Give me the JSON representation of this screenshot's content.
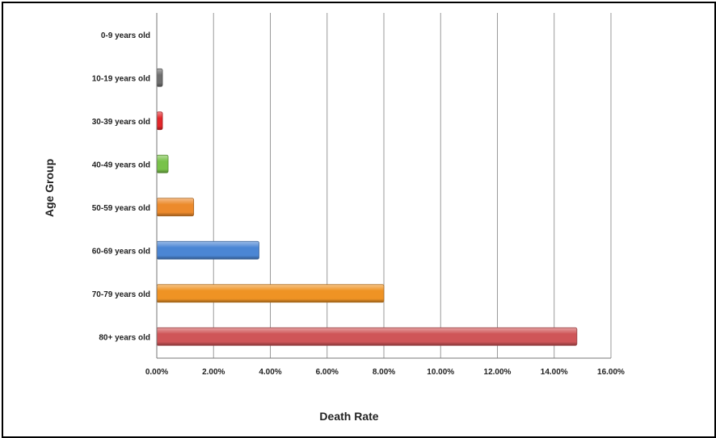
{
  "chart_data": {
    "type": "bar",
    "orientation": "horizontal",
    "title": "",
    "xlabel": "Death Rate",
    "ylabel": "Age Group",
    "categories": [
      "0-9 years old",
      "10-19 years old",
      "30-39 years old",
      "40-49 years old",
      "50-59 years old",
      "60-69 years old",
      "70-79 years old",
      "80+ years old"
    ],
    "values": [
      0.0,
      0.2,
      0.2,
      0.4,
      1.3,
      3.6,
      8.0,
      14.8
    ],
    "value_unit": "percent",
    "xlim": [
      0,
      16
    ],
    "xticks": [
      "0.00%",
      "2.00%",
      "4.00%",
      "6.00%",
      "8.00%",
      "10.00%",
      "12.00%",
      "14.00%",
      "16.00%"
    ],
    "bar_colors": [
      "#8a8a8a",
      "#6f6f6f",
      "#e3262a",
      "#79c24a",
      "#ec8a2c",
      "#4b86d4",
      "#ef9324",
      "#cf5558"
    ],
    "grid": "vertical",
    "legend": "none"
  }
}
